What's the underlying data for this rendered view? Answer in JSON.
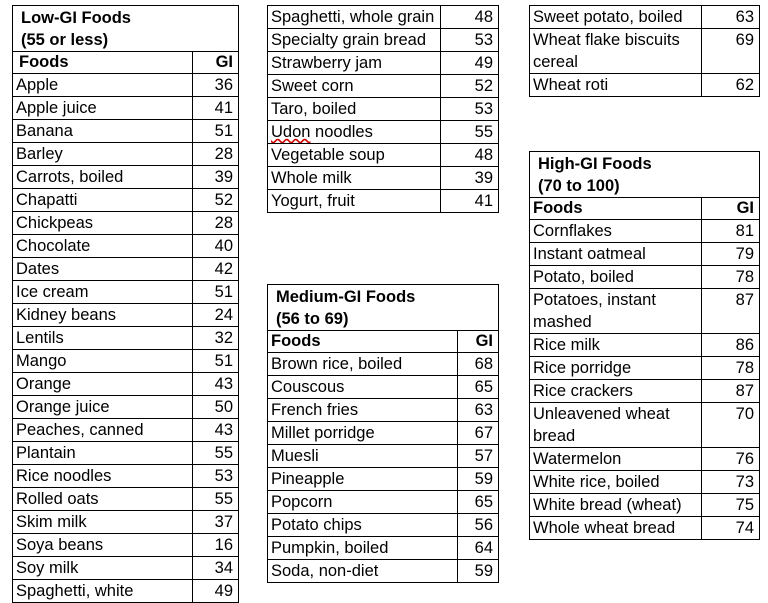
{
  "low_gi": {
    "title_line1": "Low-GI Foods",
    "title_line2": "(55 or less)",
    "col_food": "Foods",
    "col_gi": "GI",
    "rows": [
      {
        "food": "Apple",
        "gi": "36"
      },
      {
        "food": "Apple juice",
        "gi": "41"
      },
      {
        "food": "Banana",
        "gi": "51"
      },
      {
        "food": "Barley",
        "gi": "28"
      },
      {
        "food": "Carrots, boiled",
        "gi": "39"
      },
      {
        "food": "Chapatti",
        "gi": "52"
      },
      {
        "food": "Chickpeas",
        "gi": "28"
      },
      {
        "food": "Chocolate",
        "gi": "40"
      },
      {
        "food": "Dates",
        "gi": "42"
      },
      {
        "food": "Ice cream",
        "gi": "51"
      },
      {
        "food": "Kidney beans",
        "gi": "24"
      },
      {
        "food": "Lentils",
        "gi": "32"
      },
      {
        "food": "Mango",
        "gi": "51"
      },
      {
        "food": "Orange",
        "gi": "43"
      },
      {
        "food": "Orange juice",
        "gi": "50"
      },
      {
        "food": "Peaches, canned",
        "gi": "43"
      },
      {
        "food": "Plantain",
        "gi": "55"
      },
      {
        "food": "Rice noodles",
        "gi": "53"
      },
      {
        "food": "Rolled oats",
        "gi": "55"
      },
      {
        "food": "Skim milk",
        "gi": "37"
      },
      {
        "food": "Soya beans",
        "gi": "16"
      },
      {
        "food": "Soy milk",
        "gi": "34"
      },
      {
        "food": "Spaghetti, white",
        "gi": "49"
      }
    ],
    "continued_rows": [
      {
        "food": "Spaghetti, whole grain",
        "gi": "48"
      },
      {
        "food": "Specialty grain bread",
        "gi": "53"
      },
      {
        "food": "Strawberry jam",
        "gi": "49"
      },
      {
        "food": "Sweet corn",
        "gi": "52"
      },
      {
        "food": "Taro, boiled",
        "gi": "53"
      },
      {
        "food_word1": "Udon",
        "food_word2": " noodles",
        "gi": "55"
      },
      {
        "food": "Vegetable soup",
        "gi": "48"
      },
      {
        "food": "Whole milk",
        "gi": "39"
      },
      {
        "food": "Yogurt, fruit",
        "gi": "41"
      }
    ]
  },
  "medium_gi": {
    "title_line1": "Medium-GI Foods",
    "title_line2": "(56 to 69)",
    "col_food": "Foods",
    "col_gi": "GI",
    "rows": [
      {
        "food": "Brown rice, boiled",
        "gi": "68"
      },
      {
        "food": "Couscous",
        "gi": "65"
      },
      {
        "food": "French fries",
        "gi": "63"
      },
      {
        "food": "Millet porridge",
        "gi": "67"
      },
      {
        "food": "Muesli",
        "gi": "57"
      },
      {
        "food": "Pineapple",
        "gi": "59"
      },
      {
        "food": "Popcorn",
        "gi": "65"
      },
      {
        "food": "Potato chips",
        "gi": "56"
      },
      {
        "food": "Pumpkin, boiled",
        "gi": "64"
      },
      {
        "food": "Soda, non-diet",
        "gi": "59"
      }
    ],
    "continued_rows": [
      {
        "food": "Sweet potato, boiled",
        "gi": "63"
      },
      {
        "food": "Wheat flake biscuits cereal",
        "gi": "69"
      },
      {
        "food": "Wheat roti",
        "gi": "62"
      }
    ]
  },
  "high_gi": {
    "title_line1": "High-GI Foods",
    "title_line2": "(70 to 100)",
    "col_food": "Foods",
    "col_gi": "GI",
    "rows": [
      {
        "food": "Cornflakes",
        "gi": "81"
      },
      {
        "food": "Instant oatmeal",
        "gi": "79"
      },
      {
        "food": "Potato, boiled",
        "gi": "78"
      },
      {
        "food": "Potatoes, instant mashed",
        "gi": "87"
      },
      {
        "food": "Rice milk",
        "gi": "86"
      },
      {
        "food": "Rice porridge",
        "gi": "78"
      },
      {
        "food": "Rice crackers",
        "gi": "87"
      },
      {
        "food": "Unleavened wheat bread",
        "gi": "70"
      },
      {
        "food": "Watermelon",
        "gi": "76"
      },
      {
        "food": "White rice, boiled",
        "gi": "73"
      },
      {
        "food": "White bread (wheat)",
        "gi": "75"
      },
      {
        "food": "Whole wheat bread",
        "gi": "74"
      }
    ]
  }
}
